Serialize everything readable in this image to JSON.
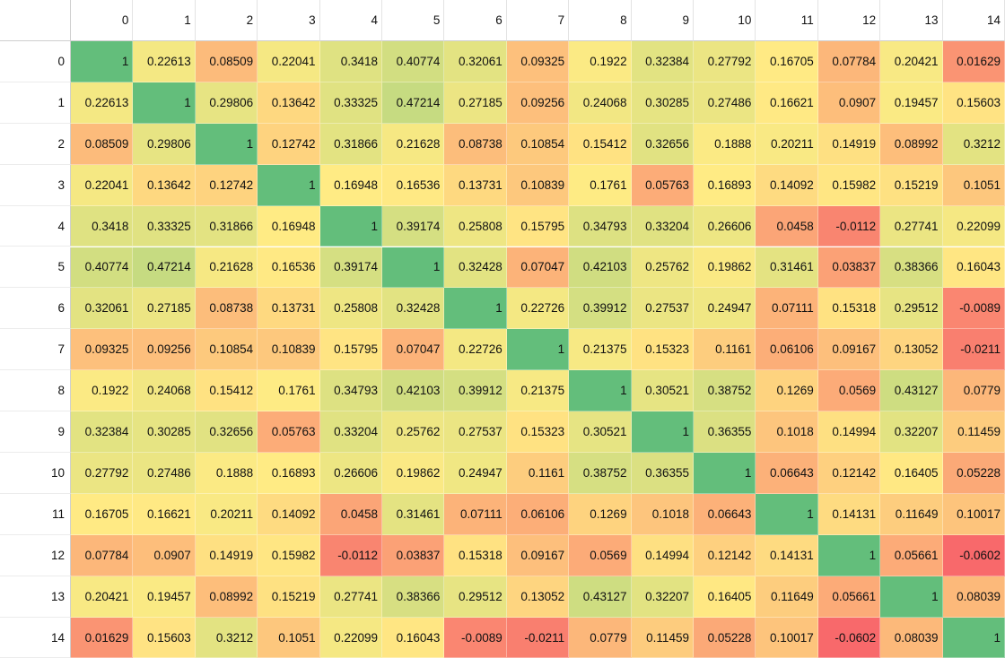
{
  "chart_data": {
    "type": "heatmap",
    "color_scale": {
      "low": "#f8696b",
      "mid": "#ffeb84",
      "high": "#63be7b"
    },
    "row_labels": [
      "0",
      "1",
      "2",
      "3",
      "4",
      "5",
      "6",
      "7",
      "8",
      "9",
      "10",
      "11",
      "12",
      "13",
      "14"
    ],
    "col_labels": [
      "0",
      "1",
      "2",
      "3",
      "4",
      "5",
      "6",
      "7",
      "8",
      "9",
      "10",
      "11",
      "12",
      "13",
      "14"
    ],
    "values": [
      [
        "1",
        "0.22613",
        "0.08509",
        "0.22041",
        "0.3418",
        "0.40774",
        "0.32061",
        "0.09325",
        "0.1922",
        "0.32384",
        "0.27792",
        "0.16705",
        "0.07784",
        "0.20421",
        "0.01629"
      ],
      [
        "0.22613",
        "1",
        "0.29806",
        "0.13642",
        "0.33325",
        "0.47214",
        "0.27185",
        "0.09256",
        "0.24068",
        "0.30285",
        "0.27486",
        "0.16621",
        "0.0907",
        "0.19457",
        "0.15603"
      ],
      [
        "0.08509",
        "0.29806",
        "1",
        "0.12742",
        "0.31866",
        "0.21628",
        "0.08738",
        "0.10854",
        "0.15412",
        "0.32656",
        "0.1888",
        "0.20211",
        "0.14919",
        "0.08992",
        "0.3212"
      ],
      [
        "0.22041",
        "0.13642",
        "0.12742",
        "1",
        "0.16948",
        "0.16536",
        "0.13731",
        "0.10839",
        "0.1761",
        "0.05763",
        "0.16893",
        "0.14092",
        "0.15982",
        "0.15219",
        "0.1051"
      ],
      [
        "0.3418",
        "0.33325",
        "0.31866",
        "0.16948",
        "1",
        "0.39174",
        "0.25808",
        "0.15795",
        "0.34793",
        "0.33204",
        "0.26606",
        "0.0458",
        "-0.0112",
        "0.27741",
        "0.22099"
      ],
      [
        "0.40774",
        "0.47214",
        "0.21628",
        "0.16536",
        "0.39174",
        "1",
        "0.32428",
        "0.07047",
        "0.42103",
        "0.25762",
        "0.19862",
        "0.31461",
        "0.03837",
        "0.38366",
        "0.16043"
      ],
      [
        "0.32061",
        "0.27185",
        "0.08738",
        "0.13731",
        "0.25808",
        "0.32428",
        "1",
        "0.22726",
        "0.39912",
        "0.27537",
        "0.24947",
        "0.07111",
        "0.15318",
        "0.29512",
        "-0.0089"
      ],
      [
        "0.09325",
        "0.09256",
        "0.10854",
        "0.10839",
        "0.15795",
        "0.07047",
        "0.22726",
        "1",
        "0.21375",
        "0.15323",
        "0.1161",
        "0.06106",
        "0.09167",
        "0.13052",
        "-0.0211"
      ],
      [
        "0.1922",
        "0.24068",
        "0.15412",
        "0.1761",
        "0.34793",
        "0.42103",
        "0.39912",
        "0.21375",
        "1",
        "0.30521",
        "0.38752",
        "0.1269",
        "0.0569",
        "0.43127",
        "0.0779"
      ],
      [
        "0.32384",
        "0.30285",
        "0.32656",
        "0.05763",
        "0.33204",
        "0.25762",
        "0.27537",
        "0.15323",
        "0.30521",
        "1",
        "0.36355",
        "0.1018",
        "0.14994",
        "0.32207",
        "0.11459"
      ],
      [
        "0.27792",
        "0.27486",
        "0.1888",
        "0.16893",
        "0.26606",
        "0.19862",
        "0.24947",
        "0.1161",
        "0.38752",
        "0.36355",
        "1",
        "0.06643",
        "0.12142",
        "0.16405",
        "0.05228"
      ],
      [
        "0.16705",
        "0.16621",
        "0.20211",
        "0.14092",
        "0.0458",
        "0.31461",
        "0.07111",
        "0.06106",
        "0.1269",
        "0.1018",
        "0.06643",
        "1",
        "0.14131",
        "0.11649",
        "0.10017"
      ],
      [
        "0.07784",
        "0.0907",
        "0.14919",
        "0.15982",
        "-0.0112",
        "0.03837",
        "0.15318",
        "0.09167",
        "0.0569",
        "0.14994",
        "0.12142",
        "0.14131",
        "1",
        "0.05661",
        "-0.0602"
      ],
      [
        "0.20421",
        "0.19457",
        "0.08992",
        "0.15219",
        "0.27741",
        "0.38366",
        "0.29512",
        "0.13052",
        "0.43127",
        "0.32207",
        "0.16405",
        "0.11649",
        "0.05661",
        "1",
        "0.08039"
      ],
      [
        "0.01629",
        "0.15603",
        "0.3212",
        "0.1051",
        "0.22099",
        "0.16043",
        "-0.0089",
        "-0.0211",
        "0.0779",
        "0.11459",
        "0.05228",
        "0.10017",
        "-0.0602",
        "0.08039",
        "1"
      ]
    ]
  }
}
